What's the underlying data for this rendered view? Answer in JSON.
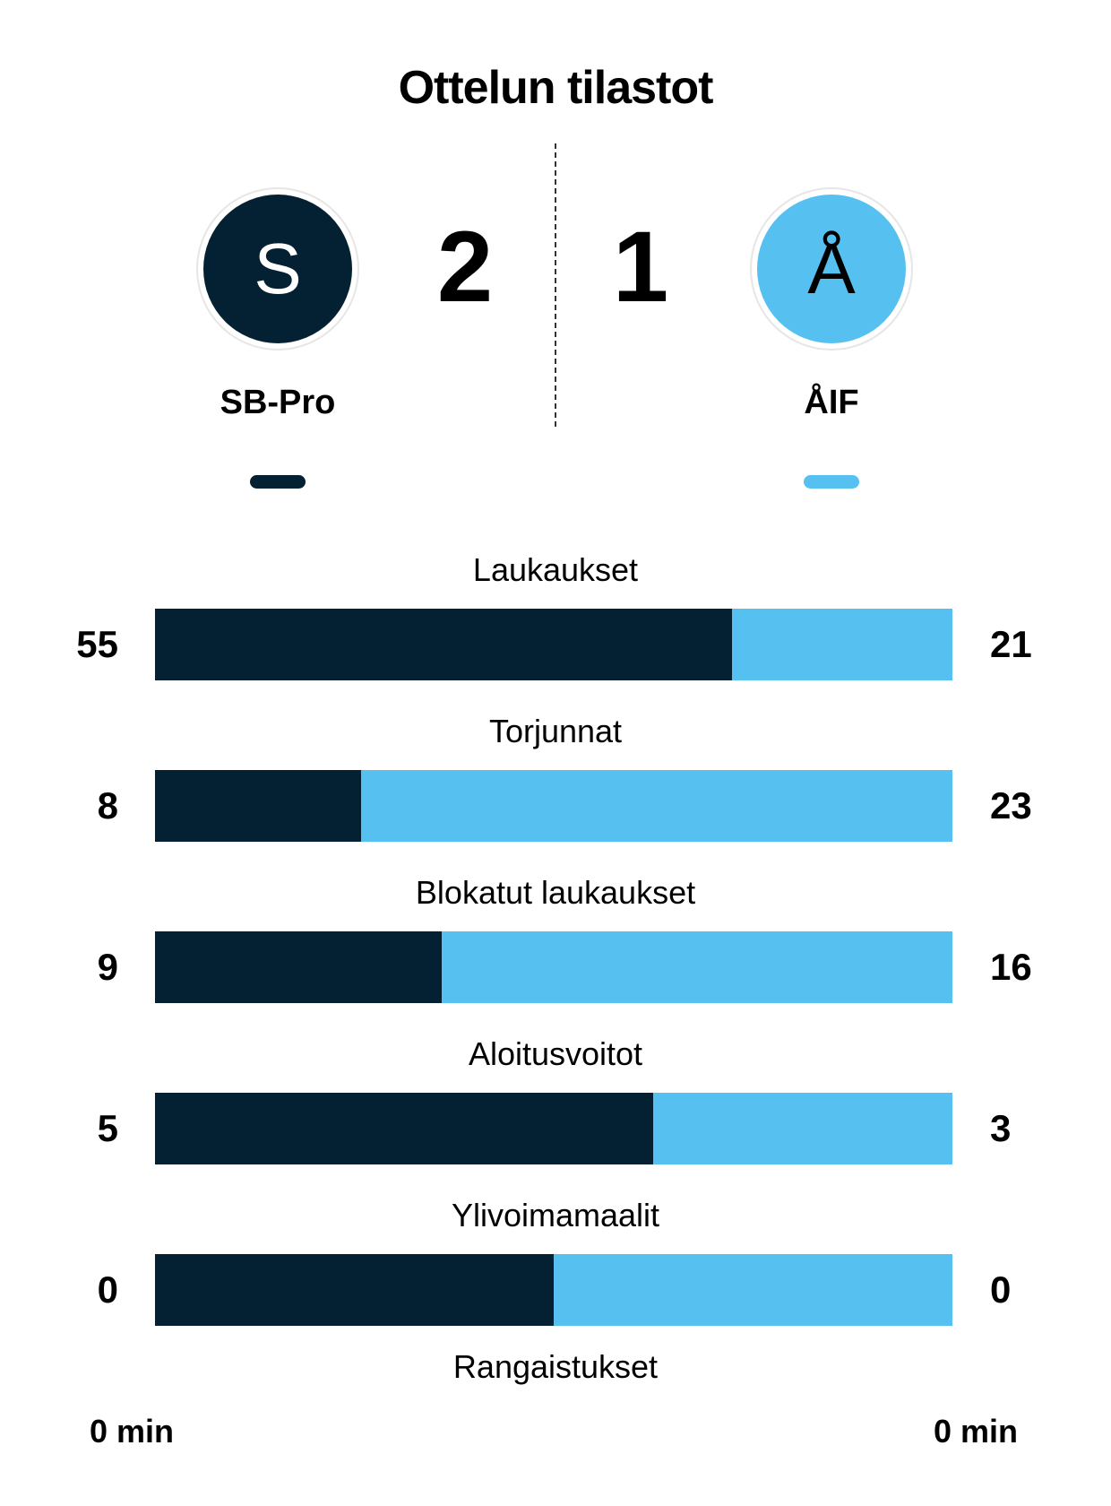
{
  "title": "Ottelun tilastot",
  "colors": {
    "home": "#032133",
    "away": "#56c1f0"
  },
  "home": {
    "name": "SB-Pro",
    "logo_letter": "S",
    "score": "2"
  },
  "away": {
    "name": "ÅIF",
    "logo_letter": "Å",
    "score": "1"
  },
  "stats": [
    {
      "label": "Laukaukset",
      "home": 55,
      "away": 21
    },
    {
      "label": "Torjunnat",
      "home": 8,
      "away": 23
    },
    {
      "label": "Blokatut laukaukset",
      "home": 9,
      "away": 16
    },
    {
      "label": "Aloitusvoitot",
      "home": 5,
      "away": 3
    },
    {
      "label": "Ylivoimamaalit",
      "home": 0,
      "away": 0
    }
  ],
  "penalties": {
    "label": "Rangaistukset",
    "home": "0 min",
    "away": "0 min"
  }
}
